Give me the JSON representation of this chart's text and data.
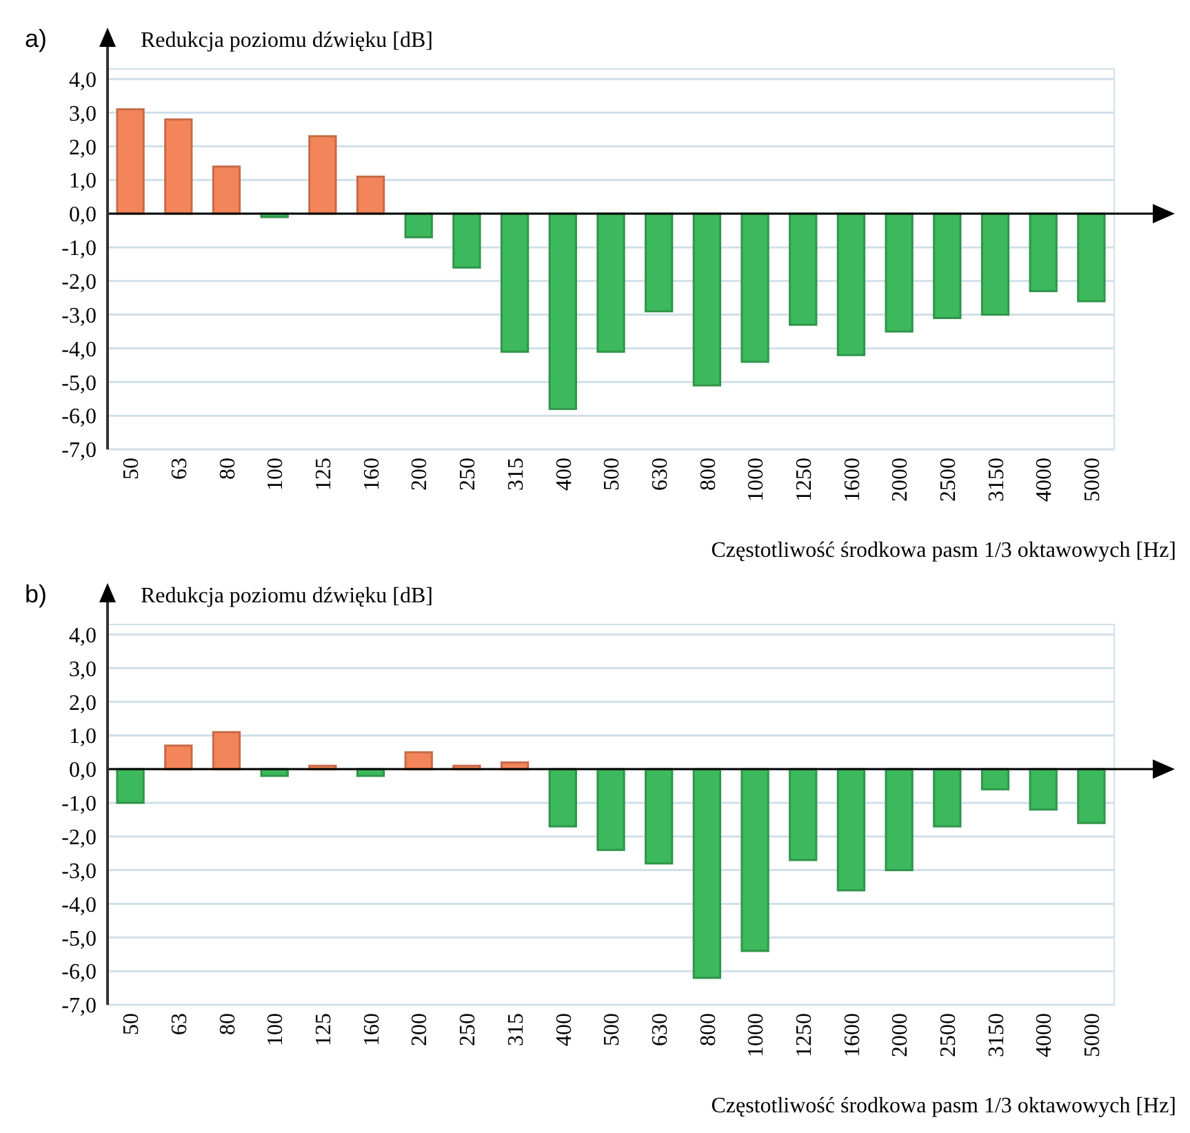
{
  "chart_data": [
    {
      "type": "bar",
      "title": "a)",
      "ylabel": "Redukcja poziomu dźwięku [dB]",
      "xlabel": "Częstotliwość środkowa pasm 1/3 oktawowych [Hz]",
      "categories": [
        "50",
        "63",
        "80",
        "100",
        "125",
        "160",
        "200",
        "250",
        "315",
        "400",
        "500",
        "630",
        "800",
        "1000",
        "1250",
        "1600",
        "2000",
        "2500",
        "3150",
        "4000",
        "5000"
      ],
      "values": [
        3.1,
        2.8,
        1.4,
        -0.1,
        2.3,
        1.1,
        -0.7,
        -1.6,
        -4.1,
        -5.8,
        -4.1,
        -2.9,
        -5.1,
        -4.4,
        -3.3,
        -4.2,
        -3.5,
        -3.1,
        -3.0,
        -2.3,
        -2.6
      ],
      "colors": [
        "#f4845a",
        "#f4845a",
        "#f4845a",
        "#3cb95c",
        "#f4845a",
        "#f4845a",
        "#3cb95c",
        "#3cb95c",
        "#3cb95c",
        "#3cb95c",
        "#3cb95c",
        "#3cb95c",
        "#3cb95c",
        "#3cb95c",
        "#3cb95c",
        "#3cb95c",
        "#3cb95c",
        "#3cb95c",
        "#3cb95c",
        "#3cb95c",
        "#3cb95c"
      ],
      "ylim": [
        -7,
        4.3
      ],
      "yticks": [
        {
          "value": 4,
          "label": "4,0"
        },
        {
          "value": 3,
          "label": "3,0"
        },
        {
          "value": 2,
          "label": "2,0"
        },
        {
          "value": 1,
          "label": "1,0"
        },
        {
          "value": 0,
          "label": "0,0"
        },
        {
          "value": -1,
          "label": "-1,0"
        },
        {
          "value": -2,
          "label": "-2,0"
        },
        {
          "value": -3,
          "label": "-3,0"
        },
        {
          "value": -4,
          "label": "-4,0"
        },
        {
          "value": -5,
          "label": "-5,0"
        },
        {
          "value": -6,
          "label": "-6,0"
        },
        {
          "value": -7,
          "label": "-7,0"
        }
      ],
      "grid": "y"
    },
    {
      "type": "bar",
      "title": "b)",
      "ylabel": "Redukcja poziomu dźwięku [dB]",
      "xlabel": "Częstotliwość środkowa pasm 1/3 oktawowych [Hz]",
      "categories": [
        "50",
        "63",
        "80",
        "100",
        "125",
        "160",
        "200",
        "250",
        "315",
        "400",
        "500",
        "630",
        "800",
        "1000",
        "1250",
        "1600",
        "2000",
        "2500",
        "3150",
        "4000",
        "5000"
      ],
      "values": [
        -1.0,
        0.7,
        1.1,
        -0.2,
        0.1,
        -0.2,
        0.5,
        0.1,
        0.2,
        -1.7,
        -2.4,
        -2.8,
        -6.2,
        -5.4,
        -2.7,
        -3.6,
        -3.0,
        -1.7,
        -0.6,
        -1.2,
        -1.6
      ],
      "colors": [
        "#3cb95c",
        "#f4845a",
        "#f4845a",
        "#3cb95c",
        "#f4845a",
        "#3cb95c",
        "#f4845a",
        "#f4845a",
        "#f4845a",
        "#3cb95c",
        "#3cb95c",
        "#3cb95c",
        "#3cb95c",
        "#3cb95c",
        "#3cb95c",
        "#3cb95c",
        "#3cb95c",
        "#3cb95c",
        "#3cb95c",
        "#3cb95c",
        "#3cb95c"
      ],
      "ylim": [
        -7,
        4.3
      ],
      "yticks": [
        {
          "value": 4,
          "label": "4,0"
        },
        {
          "value": 3,
          "label": "3,0"
        },
        {
          "value": 2,
          "label": "2,0"
        },
        {
          "value": 1,
          "label": "1,0"
        },
        {
          "value": 0,
          "label": "0,0"
        },
        {
          "value": -1,
          "label": "-1,0"
        },
        {
          "value": -2,
          "label": "-2,0"
        },
        {
          "value": -3,
          "label": "-3,0"
        },
        {
          "value": -4,
          "label": "-4,0"
        },
        {
          "value": -5,
          "label": "-5,0"
        },
        {
          "value": -6,
          "label": "-6,0"
        },
        {
          "value": -7,
          "label": "-7,0"
        }
      ],
      "grid": "y"
    }
  ]
}
